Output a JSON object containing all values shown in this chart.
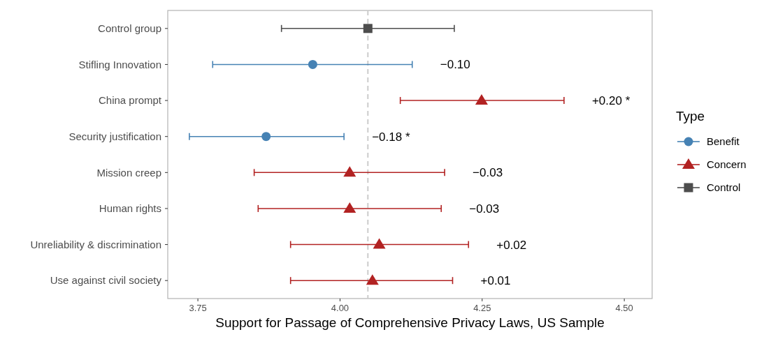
{
  "chart_data": {
    "type": "scatter",
    "orientation": "horizontal",
    "xlabel": "Support for Passage of Comprehensive Privacy Laws, US Sample",
    "legend_title": "Type",
    "legend": "right",
    "grid": false,
    "categories": [
      "Control group",
      "Stifling Innovation",
      "China prompt",
      "Security justification",
      "Mission creep",
      "Human rights",
      "Unreliability & discrimination",
      "Use against civil society"
    ],
    "xlim": [
      3.697,
      4.549
    ],
    "xticks": [
      3.75,
      {
        "value": 4,
        "label": "4.00"
      },
      4.25,
      {
        "value": 4.5,
        "label": "4.50"
      }
    ],
    "series": [
      {
        "name": "Benefit",
        "color": "#4682b4",
        "marker": "circle",
        "values": [
          null,
          3.952,
          null,
          3.87,
          null,
          null,
          null,
          null
        ],
        "errors": [
          null,
          [
            3.776,
            4.127
          ],
          null,
          [
            3.735,
            4.007
          ],
          null,
          null,
          null,
          null
        ]
      },
      {
        "name": "Concern",
        "color": "#b22222",
        "marker": "triangle",
        "values": [
          null,
          null,
          4.249,
          null,
          4.017,
          4.017,
          4.069,
          4.057
        ],
        "errors": [
          null,
          null,
          [
            4.106,
            4.394
          ],
          null,
          [
            3.849,
            4.184
          ],
          [
            3.856,
            4.178
          ],
          [
            3.913,
            4.226
          ],
          [
            3.913,
            4.198
          ]
        ]
      },
      {
        "name": "Control",
        "color": "#4d4d4d",
        "marker": "square",
        "values": [
          4.049,
          null,
          null,
          null,
          null,
          null,
          null,
          null
        ],
        "errors": [
          [
            3.897,
            4.201
          ],
          null,
          null,
          null,
          null,
          null,
          null,
          null
        ]
      }
    ],
    "ref_lines": [
      {
        "axis": "x",
        "value": 4.049,
        "color": "#cccccc",
        "line_style": "dashed"
      }
    ],
    "annotations": [
      {
        "text": "−0.10",
        "x": 4.127,
        "y": "Stifling Innovation"
      },
      {
        "text": "+0.20 *",
        "x": 4.394,
        "y": "China prompt"
      },
      {
        "text": "−0.18 *",
        "x": 4.007,
        "y": "Security justification"
      },
      {
        "text": "−0.03",
        "x": 4.184,
        "y": "Mission creep"
      },
      {
        "text": "−0.03",
        "x": 4.178,
        "y": "Human rights"
      },
      {
        "text": "+0.02",
        "x": 4.226,
        "y": "Unreliability & discrimination"
      },
      {
        "text": "+0.01",
        "x": 4.198,
        "y": "Use against civil society"
      }
    ]
  }
}
